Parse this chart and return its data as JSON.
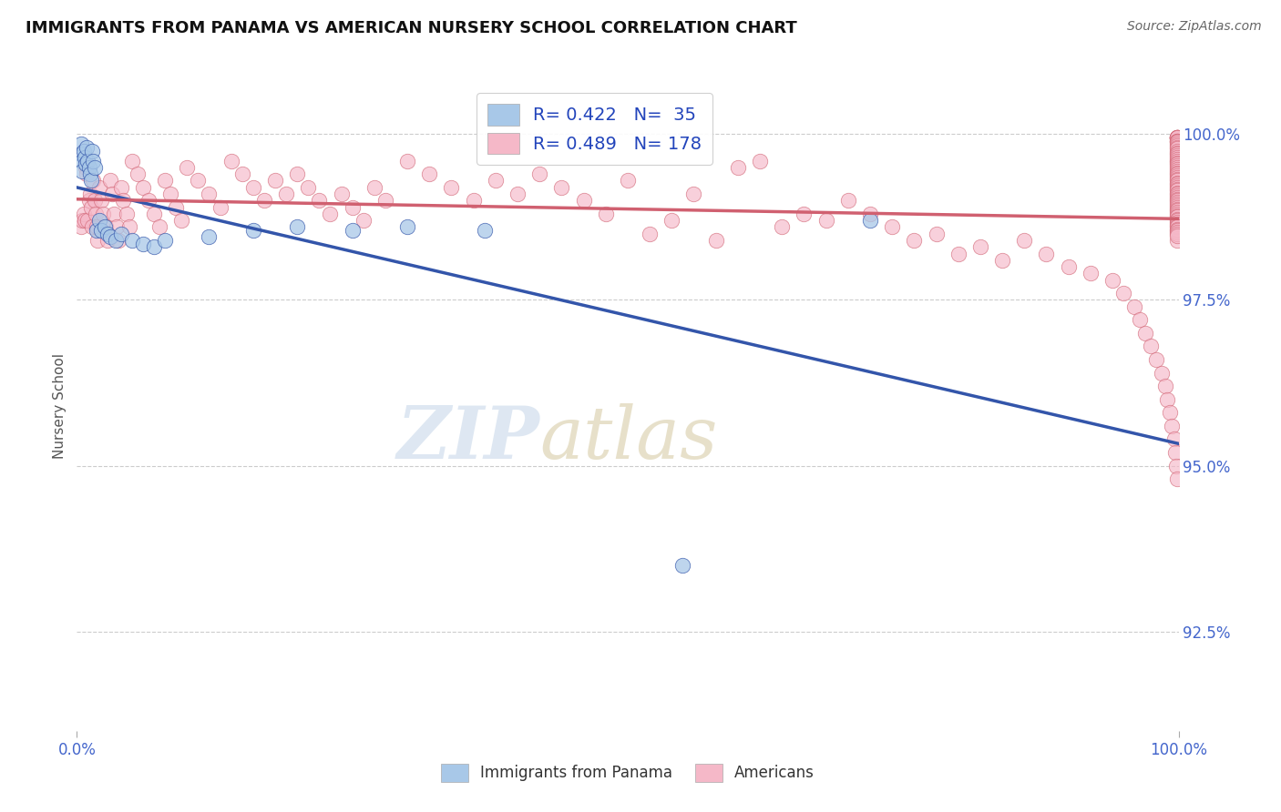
{
  "title": "IMMIGRANTS FROM PANAMA VS AMERICAN NURSERY SCHOOL CORRELATION CHART",
  "source": "Source: ZipAtlas.com",
  "ylabel": "Nursery School",
  "legend_label1": "Immigrants from Panama",
  "legend_label2": "Americans",
  "R1": 0.422,
  "N1": 35,
  "R2": 0.489,
  "N2": 178,
  "xmin": 0.0,
  "xmax": 1.0,
  "ymin": 0.91,
  "ymax": 1.008,
  "yticks": [
    0.925,
    0.95,
    0.975,
    1.0
  ],
  "ytick_labels": [
    "92.5%",
    "95.0%",
    "97.5%",
    "100.0%"
  ],
  "xtick_labels": [
    "0.0%",
    "100.0%"
  ],
  "color_blue": "#a8c8e8",
  "color_pink": "#f5b8c8",
  "line_blue": "#3355aa",
  "line_pink": "#d06070",
  "title_color": "#111111",
  "tick_color": "#4466cc",
  "source_color": "#666666",
  "background_color": "#ffffff",
  "grid_color": "#cccccc",
  "blue_points_x": [
    0.004,
    0.004,
    0.005,
    0.005,
    0.006,
    0.007,
    0.008,
    0.009,
    0.01,
    0.011,
    0.012,
    0.013,
    0.014,
    0.015,
    0.016,
    0.018,
    0.02,
    0.022,
    0.025,
    0.028,
    0.03,
    0.035,
    0.04,
    0.05,
    0.06,
    0.07,
    0.08,
    0.12,
    0.16,
    0.2,
    0.25,
    0.3,
    0.37,
    0.55,
    0.72
  ],
  "blue_points_y": [
    0.9985,
    0.997,
    0.996,
    0.9945,
    0.9975,
    0.9965,
    0.9955,
    0.998,
    0.996,
    0.995,
    0.994,
    0.993,
    0.9975,
    0.996,
    0.995,
    0.9855,
    0.987,
    0.9855,
    0.986,
    0.985,
    0.9845,
    0.984,
    0.985,
    0.984,
    0.9835,
    0.983,
    0.984,
    0.9845,
    0.9855,
    0.986,
    0.9855,
    0.986,
    0.9855,
    0.935,
    0.987
  ],
  "pink_points_x": [
    0.004,
    0.005,
    0.006,
    0.007,
    0.008,
    0.009,
    0.01,
    0.011,
    0.012,
    0.013,
    0.014,
    0.015,
    0.016,
    0.017,
    0.018,
    0.019,
    0.02,
    0.022,
    0.024,
    0.026,
    0.028,
    0.03,
    0.032,
    0.034,
    0.036,
    0.038,
    0.04,
    0.042,
    0.045,
    0.048,
    0.05,
    0.055,
    0.06,
    0.065,
    0.07,
    0.075,
    0.08,
    0.085,
    0.09,
    0.095,
    0.1,
    0.11,
    0.12,
    0.13,
    0.14,
    0.15,
    0.16,
    0.17,
    0.18,
    0.19,
    0.2,
    0.21,
    0.22,
    0.23,
    0.24,
    0.25,
    0.26,
    0.27,
    0.28,
    0.3,
    0.32,
    0.34,
    0.36,
    0.38,
    0.4,
    0.42,
    0.44,
    0.46,
    0.48,
    0.5,
    0.52,
    0.54,
    0.56,
    0.58,
    0.6,
    0.62,
    0.64,
    0.66,
    0.68,
    0.7,
    0.72,
    0.74,
    0.76,
    0.78,
    0.8,
    0.82,
    0.84,
    0.86,
    0.88,
    0.9,
    0.92,
    0.94,
    0.95,
    0.96,
    0.965,
    0.97,
    0.975,
    0.98,
    0.985,
    0.988,
    0.99,
    0.992,
    0.994,
    0.996,
    0.997,
    0.998,
    0.999,
    0.999,
    0.999,
    0.999,
    0.999,
    0.999,
    0.999,
    0.999,
    0.999,
    0.999,
    0.999,
    0.999,
    0.999,
    0.999,
    0.999,
    0.999,
    0.999,
    0.999,
    0.999,
    0.999,
    0.999,
    0.999,
    0.999,
    0.999,
    0.999,
    0.999,
    0.999,
    0.999,
    0.999,
    0.999,
    0.999,
    0.999,
    0.999,
    0.999,
    0.999,
    0.999,
    0.999,
    0.999,
    0.999,
    0.999,
    0.999,
    0.999,
    0.999,
    0.999,
    0.999,
    0.999,
    0.999,
    0.999,
    0.999,
    0.999,
    0.999,
    0.999,
    0.999,
    0.999,
    0.999,
    0.999,
    0.999,
    0.999,
    0.999,
    0.999,
    0.999,
    0.999,
    0.999,
    0.999,
    0.999,
    0.999,
    0.999,
    0.999,
    0.999,
    0.999,
    0.999,
    0.999
  ],
  "pink_points_y": [
    0.986,
    0.987,
    0.988,
    0.987,
    0.995,
    0.994,
    0.987,
    0.99,
    0.991,
    0.989,
    0.986,
    0.993,
    0.99,
    0.988,
    0.986,
    0.984,
    0.992,
    0.99,
    0.988,
    0.986,
    0.984,
    0.993,
    0.991,
    0.988,
    0.986,
    0.984,
    0.992,
    0.99,
    0.988,
    0.986,
    0.996,
    0.994,
    0.992,
    0.99,
    0.988,
    0.986,
    0.993,
    0.991,
    0.989,
    0.987,
    0.995,
    0.993,
    0.991,
    0.989,
    0.996,
    0.994,
    0.992,
    0.99,
    0.993,
    0.991,
    0.994,
    0.992,
    0.99,
    0.988,
    0.991,
    0.989,
    0.987,
    0.992,
    0.99,
    0.996,
    0.994,
    0.992,
    0.99,
    0.993,
    0.991,
    0.994,
    0.992,
    0.99,
    0.988,
    0.993,
    0.985,
    0.987,
    0.991,
    0.984,
    0.995,
    0.996,
    0.986,
    0.988,
    0.987,
    0.99,
    0.988,
    0.986,
    0.984,
    0.985,
    0.982,
    0.983,
    0.981,
    0.984,
    0.982,
    0.98,
    0.979,
    0.978,
    0.976,
    0.974,
    0.972,
    0.97,
    0.968,
    0.966,
    0.964,
    0.962,
    0.96,
    0.958,
    0.956,
    0.954,
    0.952,
    0.95,
    0.948,
    0.984,
    0.996,
    0.9995,
    0.9995,
    0.9995,
    0.9995,
    0.9995,
    0.9995,
    0.9995,
    0.9995,
    0.9995,
    0.999,
    0.999,
    0.999,
    0.9988,
    0.9985,
    0.9983,
    0.998,
    0.9978,
    0.9975,
    0.9972,
    0.997,
    0.9967,
    0.9965,
    0.9962,
    0.996,
    0.9957,
    0.9955,
    0.9952,
    0.995,
    0.9947,
    0.9945,
    0.9942,
    0.994,
    0.9937,
    0.9935,
    0.9932,
    0.993,
    0.9927,
    0.9925,
    0.9922,
    0.992,
    0.9917,
    0.9915,
    0.9912,
    0.991,
    0.9907,
    0.9905,
    0.9902,
    0.99,
    0.9897,
    0.9895,
    0.9892,
    0.989,
    0.9887,
    0.9885,
    0.9882,
    0.988,
    0.9877,
    0.9875,
    0.9872,
    0.987,
    0.9867,
    0.9865,
    0.9862,
    0.986,
    0.9857,
    0.9855,
    0.9852,
    0.985,
    0.9847
  ]
}
